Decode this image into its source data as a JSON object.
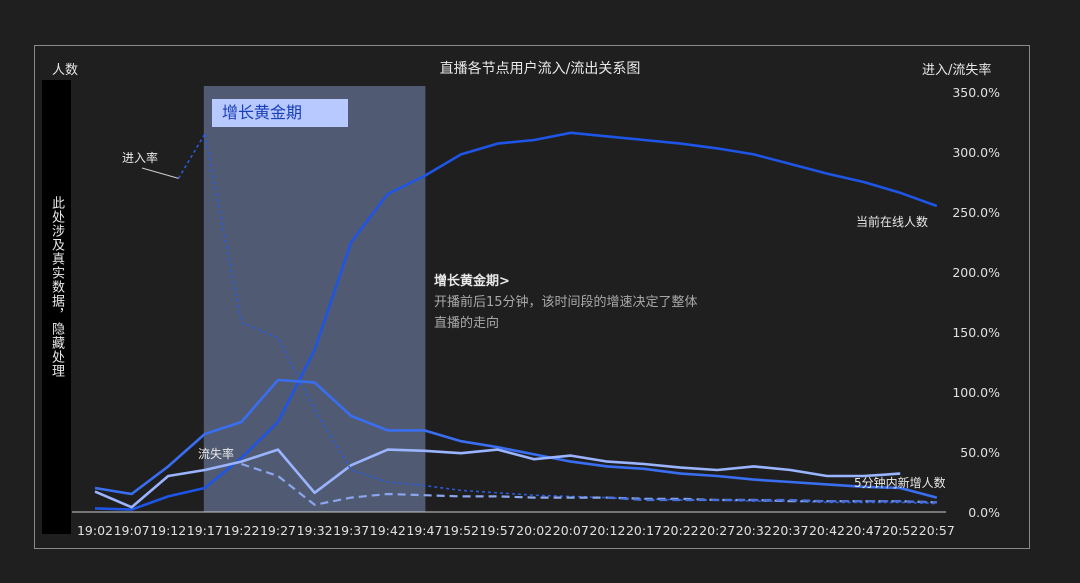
{
  "chart_data": {
    "type": "line",
    "title": "直播各节点用户流入/流出关系图",
    "ylabel_left": "人数",
    "ylabel_right": "进入/流失率",
    "hidden_note": "此处涉及真实数据，隐藏处理",
    "highlight_band": {
      "label": "增长黄金期",
      "from": "19:17",
      "to": "19:47"
    },
    "note": {
      "title": "增长黄金期>",
      "line1": "开播前后15分钟，该时间段的增速决定了整体",
      "line2": "直播的走向"
    },
    "series_labels": {
      "in_rate": "进入率",
      "out_rate": "流失率",
      "online": "当前在线人数",
      "new5": "5分钟内新增人数"
    },
    "x": [
      "19:02",
      "19:07",
      "19:12",
      "19:17",
      "19:22",
      "19:27",
      "19:32",
      "19:37",
      "19:42",
      "19:47",
      "19:52",
      "19:57",
      "20:02",
      "20:07",
      "20:12",
      "20:17",
      "20:22",
      "20:27",
      "20:32",
      "20:37",
      "20:42",
      "20:47",
      "20:52",
      "20:57"
    ],
    "right_axis": {
      "ylim": [
        0,
        350
      ],
      "ticks": [
        "350.0%",
        "300.0%",
        "250.0%",
        "200.0%",
        "150.0%",
        "100.0%",
        "50.0%",
        "0.0%"
      ]
    },
    "left_axis": {
      "ylim": [
        0,
        350
      ],
      "labels": "hidden"
    },
    "series": [
      {
        "name": "当前在线人数",
        "axis": "left",
        "style": "solid",
        "color": "#1e55e6",
        "values": [
          3,
          2,
          13,
          20,
          45,
          75,
          135,
          225,
          265,
          280,
          298,
          307,
          310,
          316,
          313,
          310,
          307,
          303,
          298,
          290,
          282,
          275,
          266,
          255
        ]
      },
      {
        "name": "",
        "axis": "left",
        "style": "solid",
        "color": "#3a6ef0",
        "values": [
          20,
          15,
          38,
          65,
          75,
          110,
          108,
          80,
          68,
          68,
          59,
          54,
          48,
          42,
          38,
          36,
          32,
          30,
          27,
          25,
          23,
          21,
          20,
          12
        ]
      },
      {
        "name": "5分钟内新增人数",
        "axis": "left",
        "style": "solid",
        "color": "#9ab4ff",
        "values": [
          17,
          4,
          30,
          35,
          42,
          52,
          16,
          39,
          52,
          51,
          49,
          52,
          44,
          47,
          42,
          40,
          37,
          35,
          38,
          35,
          30,
          30,
          32,
          null
        ]
      },
      {
        "name": "进入率",
        "axis": "right",
        "style": "dotted",
        "color": "#2a5ad8",
        "values": [
          null,
          null,
          null,
          315,
          158,
          145,
          85,
          35,
          25,
          22,
          18,
          16,
          14,
          13,
          12,
          11,
          10,
          10,
          9,
          9,
          8,
          8,
          8,
          7
        ]
      },
      {
        "name": "流失率",
        "axis": "right",
        "style": "dashed",
        "color": "#8aa6ee",
        "values": [
          null,
          null,
          null,
          null,
          40,
          30,
          6,
          12,
          15,
          14,
          13,
          13,
          12,
          12,
          12,
          11,
          11,
          10,
          10,
          9,
          9,
          9,
          9,
          8
        ]
      },
      {
        "name": "",
        "axis": "right",
        "style": "dashed",
        "color": "#4a6fd8",
        "values": [
          null,
          null,
          null,
          null,
          null,
          null,
          null,
          null,
          null,
          null,
          null,
          null,
          null,
          null,
          12,
          10,
          10,
          10,
          10,
          10,
          9,
          9,
          9,
          8
        ]
      }
    ],
    "annotation_point": {
      "series": "进入率",
      "value": 278,
      "between": [
        "19:12",
        "19:17"
      ]
    },
    "grid": false,
    "legend": "inline labels"
  }
}
